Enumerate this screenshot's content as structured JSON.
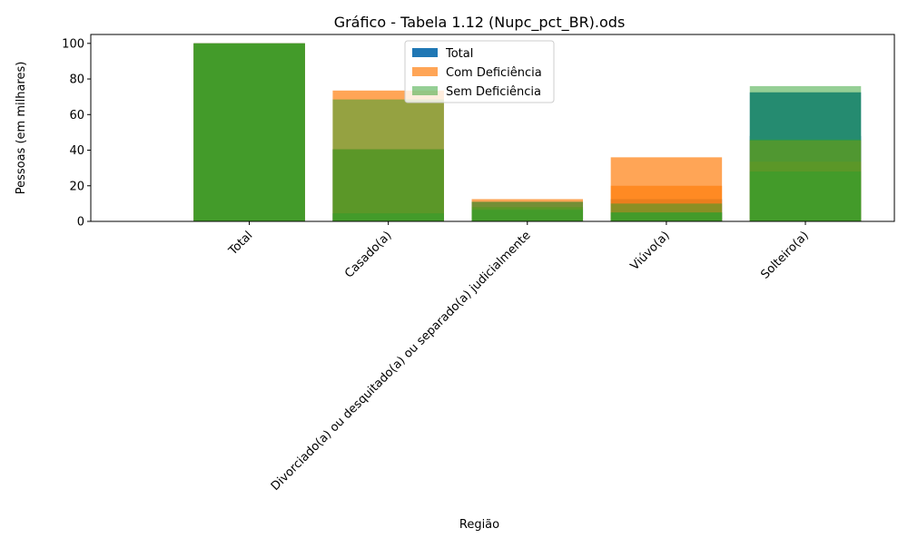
{
  "chart_data": {
    "type": "bar",
    "title": "Gráfico - Tabela 1.12 (Nupc_pct_BR).ods",
    "xlabel": "Região",
    "ylabel": "Pessoas (em milhares)",
    "ylim": [
      0,
      105
    ],
    "yticks": [
      0,
      20,
      40,
      60,
      80,
      100
    ],
    "categories": [
      "Total",
      "Casado(a)",
      "Divorciado(a) ou desquitado(a) ou separado(a) judicialmente",
      "Viúvo(a)",
      "Solteiro(a)"
    ],
    "legend_position": "upper center",
    "grid": false,
    "overlay_groups": [
      {
        "name": "Total",
        "color": "#1f77b4",
        "alpha": 1.0,
        "series": [
          {
            "values": [
              100,
              40.5,
              11,
              12.5,
              72.5
            ]
          },
          {
            "values": [
              100,
              4.5,
              6.5,
              5,
              48
            ]
          }
        ]
      },
      {
        "name": "Com Deficiência",
        "color": "#ff7f0e",
        "alpha": 0.7,
        "series": [
          {
            "values": [
              100,
              73.5,
              12.5,
              36,
              45.5
            ]
          },
          {
            "values": [
              100,
              40.5,
              8,
              20,
              33.5
            ]
          }
        ]
      },
      {
        "name": "Sem Deficiência",
        "color": "#2ca02c",
        "alpha": 0.5,
        "series": [
          {
            "values": [
              100,
              68.5,
              11,
              10,
              76
            ]
          },
          {
            "values": [
              100,
              40.5,
              8,
              5,
              46
            ]
          },
          {
            "values": [
              100,
              4.5,
              6.5,
              5,
              28
            ]
          }
        ]
      }
    ]
  }
}
